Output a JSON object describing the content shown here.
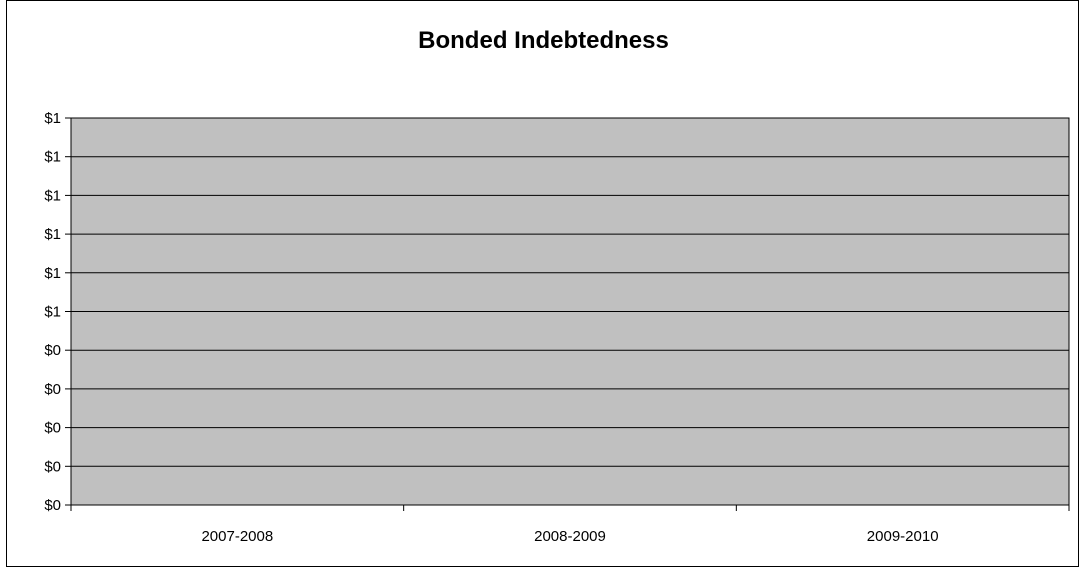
{
  "chart_data": {
    "type": "bar",
    "title": "Bonded Indebtedness",
    "xlabel": "",
    "ylabel": "",
    "categories": [
      "2007-2008",
      "2008-2009",
      "2009-2010"
    ],
    "series": [
      {
        "values": [
          0,
          0,
          0
        ]
      }
    ],
    "y_tick_labels": [
      "$0",
      "$0",
      "$0",
      "$0",
      "$0",
      "$1",
      "$1",
      "$1",
      "$1",
      "$1",
      "$1"
    ],
    "ylim": [
      0,
      1
    ],
    "grid": true,
    "legend": "none",
    "colors": {
      "plot_background": "#c0c0c0",
      "gridline": "#000000",
      "axis": "#000000",
      "bar": "#9999ff"
    }
  }
}
